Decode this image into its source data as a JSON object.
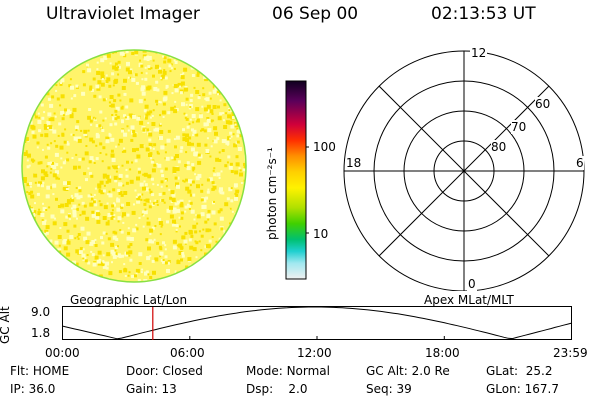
{
  "header": {
    "instrument": "Ultraviolet Imager",
    "date": "06 Sep 00",
    "time": "02:13:53 UT"
  },
  "colorbar": {
    "unit_label": "photon cm⁻²s⁻¹",
    "ticks": [
      "100",
      "10"
    ]
  },
  "polar_plot": {
    "mlt_labels": {
      "top": "12",
      "left": "18",
      "right": "6",
      "bottom": "0"
    },
    "lat_labels": [
      "60",
      "70",
      "80"
    ]
  },
  "altitude_panel": {
    "ylabel": "GC Alt",
    "yticks": [
      "9.0",
      "1.8"
    ],
    "left_title": "Geographic Lat/Lon",
    "right_title": "Apex MLat/MLT",
    "xticks": [
      "00:00",
      "06:00",
      "12:00",
      "18:00",
      "23:59"
    ],
    "current_time_fraction": 0.178
  },
  "info": {
    "row1": [
      {
        "label": "Flt:",
        "value": "HOME"
      },
      {
        "label": "Door:",
        "value": "Closed"
      },
      {
        "label": "Mode:",
        "value": "Normal"
      },
      {
        "label": "GC Alt:",
        "value": "2.0 Re"
      },
      {
        "label": "GLat:",
        "value": "25.2"
      }
    ],
    "row2": [
      {
        "label": "IP:",
        "value": "36.0"
      },
      {
        "label": "Gain:",
        "value": "13"
      },
      {
        "label": "Dsp:",
        "value": "2.0"
      },
      {
        "label": "Seq:",
        "value": "39"
      },
      {
        "label": "GLon:",
        "value": "167.7"
      }
    ]
  },
  "colors": {
    "disk_base": "#fff46a",
    "disk_dark": "#f7e000",
    "disk_light": "#ffffc0",
    "disk_edge": "#88e040",
    "marker": "#d00000"
  }
}
